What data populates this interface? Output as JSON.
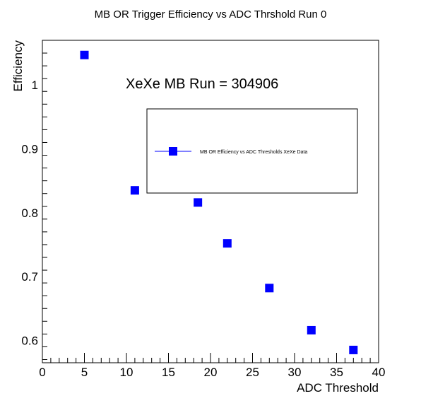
{
  "chart_data": {
    "type": "scatter",
    "title": "MB OR Trigger Efficiency vs ADC Thrshold Run 0",
    "xlabel": "ADC Threshold",
    "ylabel": "Efficiency",
    "xlim": [
      0,
      40
    ],
    "ylim": [
      0.565,
      1.07
    ],
    "x_ticks": [
      0,
      5,
      10,
      15,
      20,
      25,
      30,
      35,
      40
    ],
    "y_ticks": [
      0.6,
      0.7,
      0.8,
      0.9,
      1
    ],
    "annotation": "XeXe MB Run = 304906",
    "legend_position": "top-right",
    "marker_color": "#0000ff",
    "series": [
      {
        "name": "MB OR Efficiency vs ADC Thresholds XeXe Data",
        "x": [
          5,
          11,
          18.5,
          22,
          27,
          32,
          37
        ],
        "y": [
          1.047,
          0.835,
          0.816,
          0.752,
          0.682,
          0.616,
          0.585
        ]
      }
    ]
  }
}
